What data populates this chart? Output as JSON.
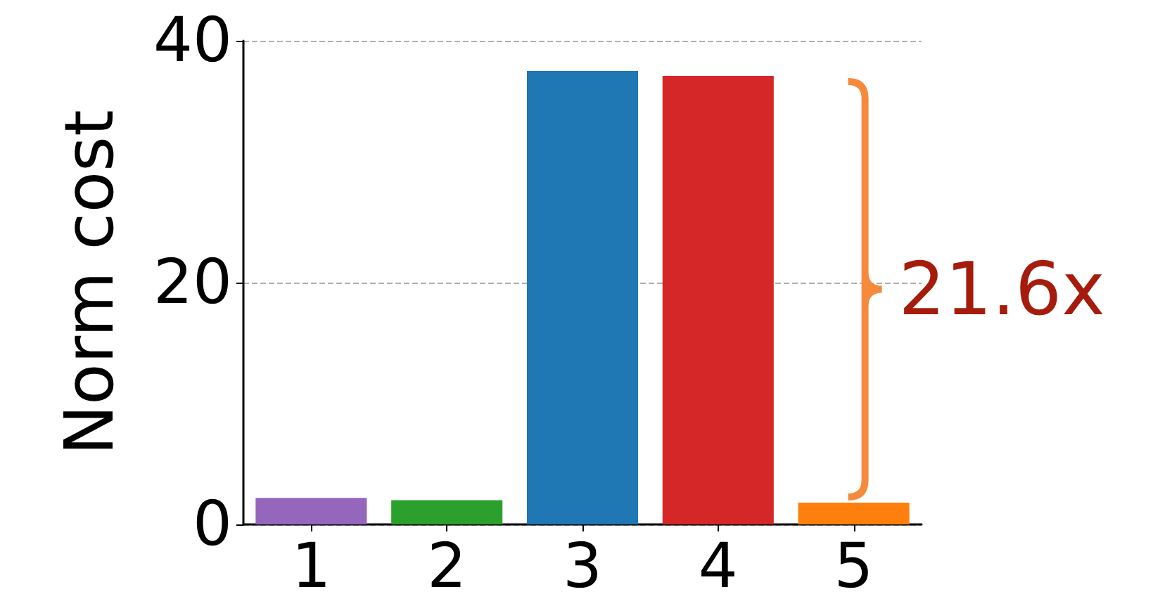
{
  "chart_data": {
    "type": "bar",
    "ylabel": "Norm cost",
    "categories": [
      "1",
      "2",
      "3",
      "4",
      "5"
    ],
    "values": [
      2.2,
      2.0,
      37.5,
      37.1,
      1.8
    ],
    "colors": [
      "#9467bd",
      "#2ca02c",
      "#1f77b4",
      "#d62728",
      "#ff7f0e"
    ],
    "ylim": [
      0,
      40
    ],
    "yticks": [
      0,
      20,
      40
    ],
    "grid": "y",
    "annotations": [
      "21.6x"
    ]
  }
}
